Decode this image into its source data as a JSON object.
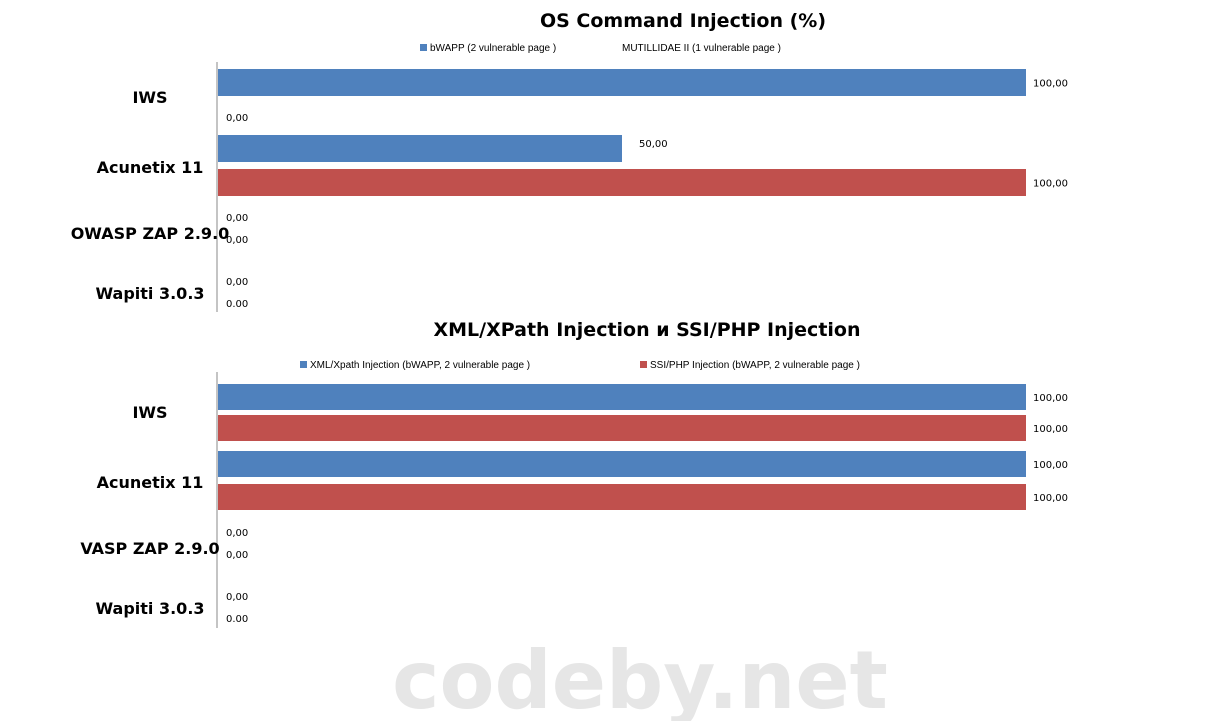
{
  "watermark": "codeby.net",
  "chart_data": [
    {
      "type": "bar",
      "orientation": "horizontal",
      "title": "OS Command Injection    (%)",
      "legend_position": "top",
      "xlim": [
        0,
        100
      ],
      "grid": false,
      "categories": [
        "IWS",
        "Acunetix 11",
        "OWASP ZAP 2.9.0",
        "Wapiti 3.0.3"
      ],
      "series": [
        {
          "name": "bWAPP  (2 vulnerable page )",
          "color": "#4f81bd",
          "values": [
            100,
            50,
            0,
            0
          ],
          "labels": [
            "100,00",
            "50,00",
            "0,00",
            "0,00"
          ]
        },
        {
          "name": "MUTILLIDAE  II (1 vulnerable page )",
          "color": "#c0504d",
          "show_swatch": false,
          "values": [
            0,
            100,
            0,
            0
          ],
          "labels": [
            "0,00",
            "100,00",
            "0,00",
            "0.00"
          ]
        }
      ]
    },
    {
      "type": "bar",
      "orientation": "horizontal",
      "title": "XML/XPath Injection и SSI/PHP Injection",
      "legend_position": "top",
      "xlim": [
        0,
        100
      ],
      "grid": false,
      "categories": [
        "IWS",
        "Acunetix 11",
        "VASP ZAP 2.9.0",
        "Wapiti 3.0.3"
      ],
      "series": [
        {
          "name": "XML/Xpath Injection (bWAPP, 2 vulnerable page )",
          "color": "#4f81bd",
          "values": [
            100,
            100,
            0,
            0
          ],
          "labels": [
            "100,00",
            "100,00",
            "0,00",
            "0,00"
          ]
        },
        {
          "name": "SSI/PHP Injection (bWAPP,  2  vulnerable page )",
          "color": "#c0504d",
          "values": [
            100,
            100,
            0,
            0
          ],
          "labels": [
            "100,00",
            "100,00",
            "0,00",
            "0.00"
          ]
        }
      ]
    }
  ]
}
